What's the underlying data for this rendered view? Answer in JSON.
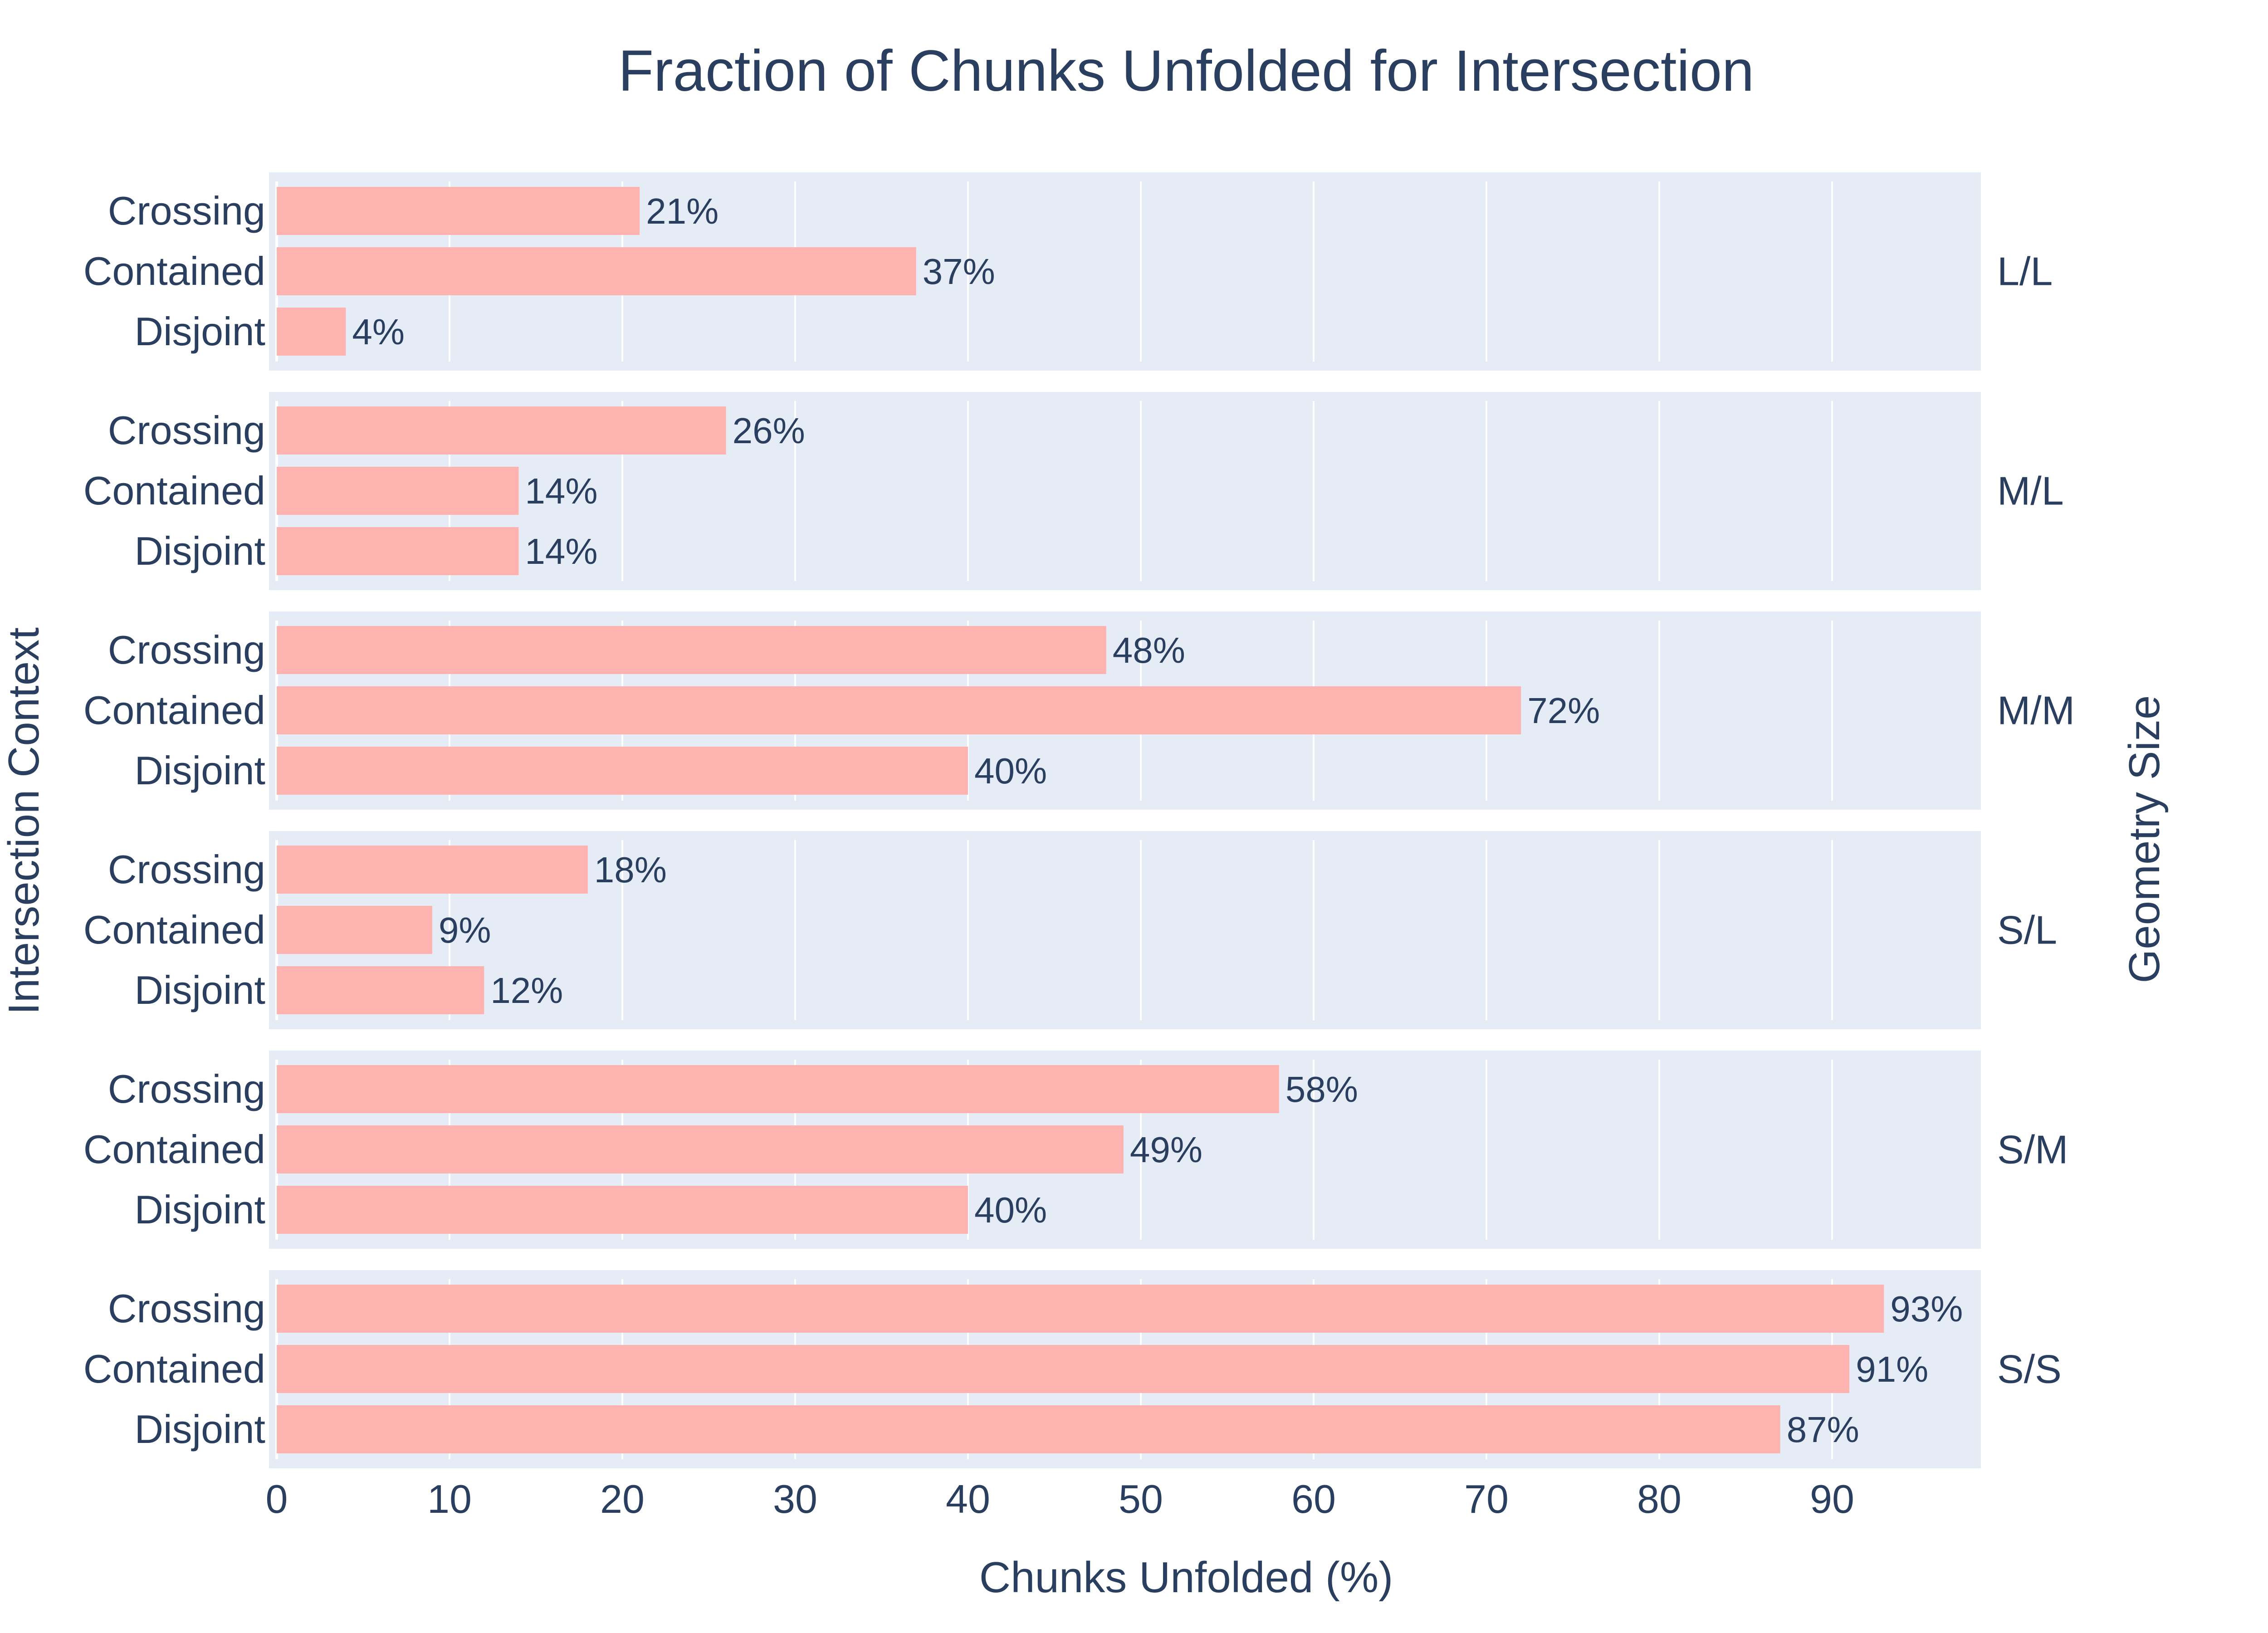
{
  "chart_data": {
    "type": "bar",
    "orientation": "horizontal",
    "title": "Fraction of Chunks Unfolded for Intersection",
    "xlabel": "Chunks Unfolded (%)",
    "ylabel": "Intersection Context",
    "facet_label": "Geometry Size",
    "xlim": [
      0,
      98.5
    ],
    "xticks": [
      "0",
      "10",
      "20",
      "30",
      "40",
      "50",
      "60",
      "70",
      "80",
      "90"
    ],
    "categories": [
      "Crossing",
      "Contained",
      "Disjoint"
    ],
    "grid": true,
    "colors": {
      "bar": "#ffb3b0",
      "panel": "#e5ecf6",
      "text": "#2a3f5f",
      "grid": "#ffffff"
    },
    "facets": [
      {
        "name": "L/L",
        "values": [
          21,
          37,
          4
        ],
        "labels": [
          "21%",
          "37%",
          "4%"
        ]
      },
      {
        "name": "M/L",
        "values": [
          26,
          14,
          14
        ],
        "labels": [
          "26%",
          "14%",
          "14%"
        ]
      },
      {
        "name": "M/M",
        "values": [
          48,
          72,
          40
        ],
        "labels": [
          "48%",
          "72%",
          "40%"
        ]
      },
      {
        "name": "S/L",
        "values": [
          18,
          9,
          12
        ],
        "labels": [
          "18%",
          "9%",
          "12%"
        ]
      },
      {
        "name": "S/M",
        "values": [
          58,
          49,
          40
        ],
        "labels": [
          "58%",
          "49%",
          "40%"
        ]
      },
      {
        "name": "S/S",
        "values": [
          93,
          91,
          87
        ],
        "labels": [
          "93%",
          "91%",
          "87%"
        ]
      }
    ]
  }
}
